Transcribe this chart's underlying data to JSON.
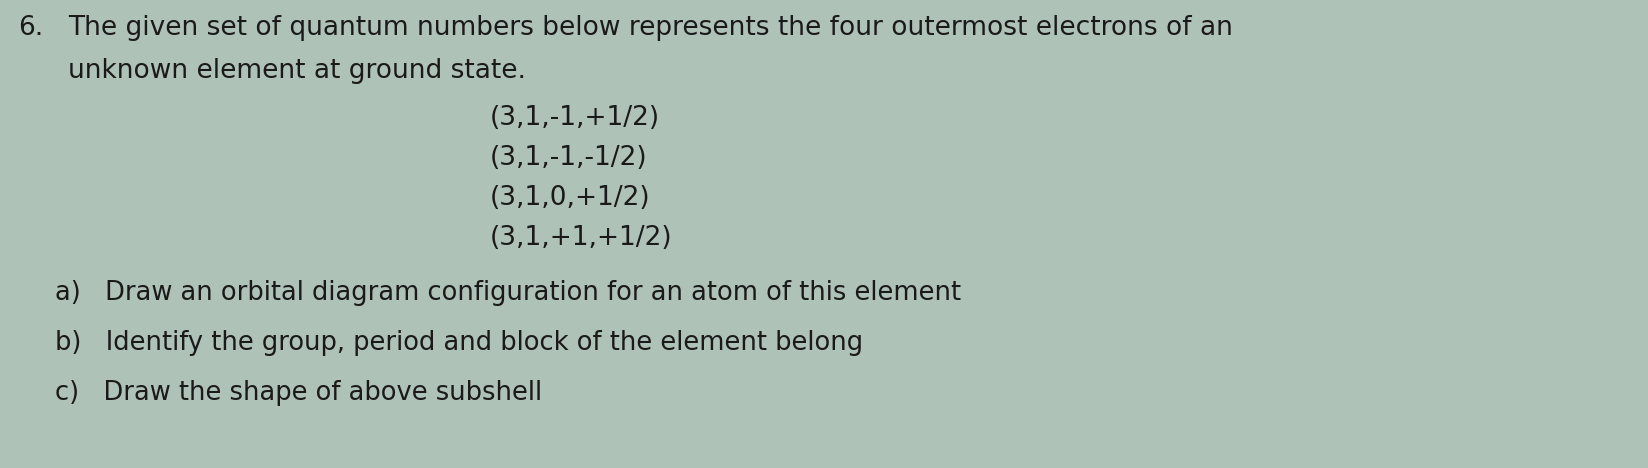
{
  "background_color": "#afc2b8",
  "text_color": "#1a1a1a",
  "number": "6.",
  "main_text_line1": "The given set of quantum numbers below represents the four outermost electrons of an",
  "main_text_line2": "unknown element at ground state.",
  "quantum_numbers": [
    "(3,1,-1,+1/2)",
    "(3,1,-1,-1/2)",
    "(3,1,0,+1/2)",
    "(3,1,+1,+1/2)"
  ],
  "sub_questions": [
    "a)   Draw an orbital diagram configuration for an atom of this element",
    "b)   Identify the group, period and block of the element belong",
    "c)   Draw the shape of above subshell"
  ],
  "main_fontsize": 19,
  "qn_fontsize": 19,
  "sub_fontsize": 18.5,
  "number_fontsize": 19
}
